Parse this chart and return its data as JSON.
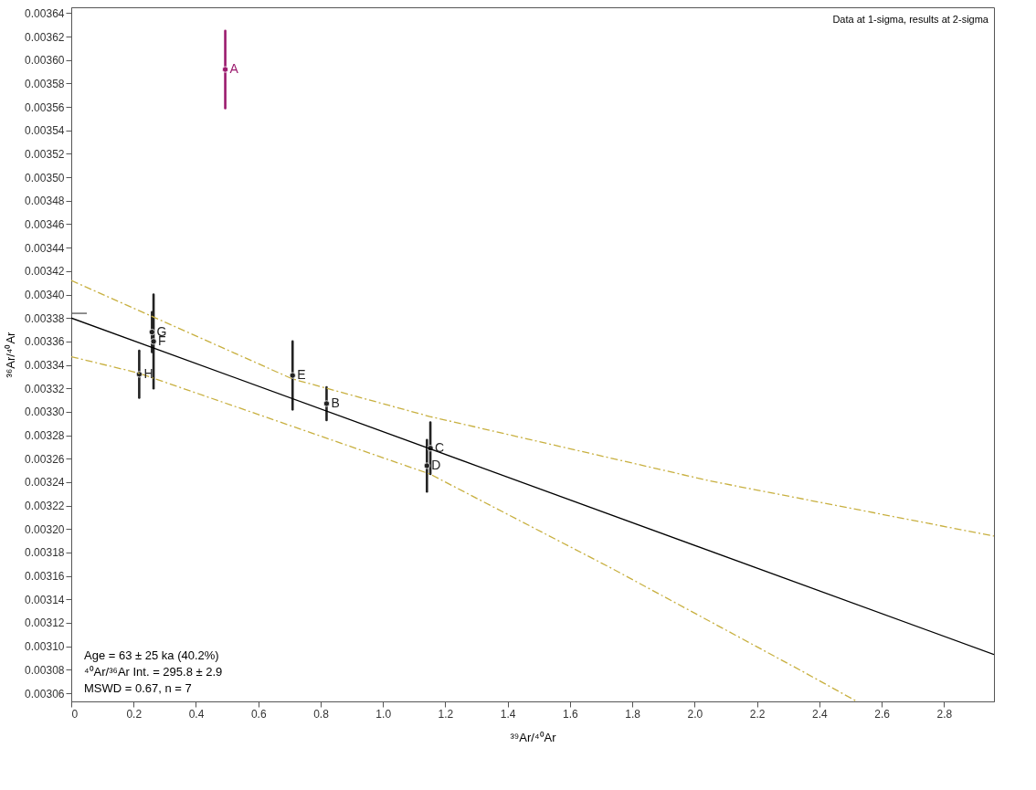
{
  "chart_data": {
    "type": "scatter",
    "xlabel": "³⁹Ar/⁴⁰Ar",
    "ylabel": "³⁶Ar/⁴⁰Ar",
    "xlim": [
      0,
      2.96
    ],
    "xticks": [
      0,
      0.2,
      0.4,
      0.6,
      0.8,
      {
        "value": 1.0,
        "label": "1.0"
      },
      1.2,
      1.4,
      1.6,
      1.8,
      {
        "value": 2.0,
        "label": "2.0"
      },
      2.2,
      2.4,
      2.6,
      2.8
    ],
    "ylim": [
      0.003053,
      0.003645
    ],
    "yticks": [
      0.00306,
      0.00308,
      {
        "value": 0.0031,
        "label": "0.00310"
      },
      0.00312,
      0.00314,
      0.00316,
      0.00318,
      {
        "value": 0.0032,
        "label": "0.00320"
      },
      0.00322,
      0.00324,
      0.00326,
      0.00328,
      {
        "value": 0.0033,
        "label": "0.00330"
      },
      0.00332,
      0.00334,
      0.00336,
      0.00338,
      {
        "value": 0.0034,
        "label": "0.00340"
      },
      0.00342,
      0.00344,
      0.00346,
      0.00348,
      {
        "value": 0.0035,
        "label": "0.00350"
      },
      0.00352,
      0.00354,
      0.00356,
      0.00358,
      {
        "value": 0.0036,
        "label": "0.00360"
      },
      0.00362,
      0.00364
    ],
    "grid": false,
    "series": [
      {
        "marker": "circle",
        "color": "#9b1b6e",
        "x": [
          0.494
        ],
        "values": [
          0.003592
        ],
        "errors": [
          3.3e-05
        ],
        "xerrors": [
          0.004
        ],
        "value_labels": [
          "A"
        ]
      },
      {
        "marker": "circle",
        "color": "#222222",
        "x": [
          0.819,
          1.152,
          1.141,
          0.71,
          0.264,
          0.259,
          0.218
        ],
        "values": [
          0.003307,
          0.003269,
          0.003254,
          0.003331,
          0.00336,
          0.003368,
          0.003332
        ],
        "errors": [
          1.4e-05,
          2.2e-05,
          2.2e-05,
          2.9e-05,
          4e-05,
          1.7e-05,
          2e-05
        ],
        "xerrors": [
          0.004,
          0.005,
          0.005,
          0.005,
          0.005,
          0.004,
          0.005
        ],
        "value_labels": [
          "B",
          "C",
          "D",
          "E",
          "F",
          "G",
          "H"
        ]
      },
      {
        "type": "line",
        "color": "#000000",
        "line_style": "solid",
        "x": [
          0,
          2.96
        ],
        "values": [
          0.00338,
          0.003093
        ]
      },
      {
        "type": "line",
        "color": "#c8b040",
        "line_style": "dashed",
        "x": [
          0,
          0.71,
          1.15,
          2.05,
          2.96
        ],
        "values": [
          0.003412,
          0.003328,
          0.003296,
          0.003241,
          0.003194
        ]
      },
      {
        "type": "line",
        "color": "#c8b040",
        "line_style": "dashed",
        "x": [
          0,
          0.217,
          1.15,
          1.73,
          2.35,
          2.52
        ],
        "values": [
          0.003347,
          0.003333,
          0.003247,
          0.003167,
          0.003078,
          0.003053
        ]
      },
      {
        "type": "line",
        "color": "#555555",
        "line_style": "solid",
        "x": [
          0,
          0.05
        ],
        "values": [
          0.003384,
          0.003384
        ]
      }
    ],
    "annotations": [
      "Data at 1-sigma, results at 2-sigma",
      "Age =  63 ± 25 ka (40.2%)",
      "⁴⁰Ar/³⁶Ar Int. =  295.8 ± 2.9",
      "MSWD = 0.67, n = 7"
    ]
  }
}
